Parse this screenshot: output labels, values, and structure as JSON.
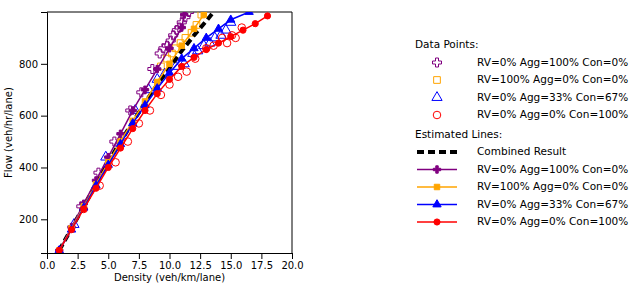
{
  "chart_data": {
    "type": "scatter",
    "x_label": "Density (veh/km/lane)",
    "y_label": "Flow (veh/hr/lane)",
    "xlim": [
      0,
      20
    ],
    "ylim": [
      70,
      1000
    ],
    "xticks": [
      {
        "value": 0,
        "label": "0.0"
      },
      {
        "value": 2.5,
        "label": "2.5"
      },
      {
        "value": 5,
        "label": "5.0"
      },
      {
        "value": 7.5,
        "label": "7.5"
      },
      {
        "value": 10,
        "label": "10.0"
      },
      {
        "value": 12.5,
        "label": "12.5"
      },
      {
        "value": 15,
        "label": "15.0"
      },
      {
        "value": 17.5,
        "label": "17.5"
      },
      {
        "value": 20,
        "label": "20.0"
      }
    ],
    "yticks": [
      200,
      400,
      600,
      800
    ],
    "grid": false,
    "legend": "right",
    "legend_headings": {
      "scatter": "Data Points:",
      "line": "Estimated Lines:"
    },
    "series": [
      {
        "name": "RV=0% Agg=100% Con=0%",
        "type": "scatter",
        "color": "purple",
        "marker": "plus",
        "line_style": "none",
        "x": [
          2.8,
          4.2,
          5.5,
          6.8,
          7.7,
          8.6,
          9.2,
          9.5,
          9.8,
          10.1,
          10.3,
          10.6,
          10.8,
          11.0,
          11.3,
          11.6
        ],
        "values": [
          250,
          380,
          500,
          620,
          690,
          780,
          840,
          860,
          870,
          890,
          910,
          930,
          940,
          960,
          980,
          1000
        ]
      },
      {
        "name": "RV=100% Agg=0% Con=0%",
        "type": "scatter",
        "color": "orange",
        "marker": "square",
        "line_style": "none",
        "x": [
          9.3,
          9.8,
          10.2,
          10.5,
          10.9,
          11.3,
          11.8,
          12.2,
          12.6
        ],
        "values": [
          790,
          820,
          840,
          860,
          880,
          900,
          920,
          950,
          990
        ]
      },
      {
        "name": "RV=0% Agg=33% Con=67%",
        "type": "scatter",
        "color": "blue",
        "marker": "triangle",
        "line_style": "none",
        "x": [
          2.2,
          4.8,
          7.2,
          8.3,
          9.0,
          9.6,
          10.5,
          11.2,
          11.9,
          12.3,
          12.8,
          13.3,
          13.7,
          14.2,
          14.6,
          15.0
        ],
        "values": [
          180,
          440,
          620,
          700,
          740,
          760,
          790,
          800,
          840,
          850,
          870,
          880,
          900,
          910,
          930,
          960
        ]
      },
      {
        "name": "RV=0% Agg=0% Con=100%",
        "type": "scatter",
        "color": "red",
        "marker": "circle",
        "line_style": "none",
        "x": [
          3.0,
          4.3,
          5.6,
          6.6,
          7.5,
          8.4,
          9.3,
          10.0,
          10.7,
          11.4,
          12.1,
          13.0,
          13.6,
          14.3,
          14.7,
          15.1,
          15.4,
          15.9
        ],
        "values": [
          240,
          330,
          420,
          500,
          570,
          620,
          680,
          720,
          750,
          770,
          820,
          860,
          870,
          900,
          880,
          910,
          900,
          940
        ]
      },
      {
        "name": "Combined Result",
        "type": "line",
        "color": "black",
        "marker": "none",
        "line_style": "dashed",
        "x": [
          1,
          2,
          3,
          4,
          5,
          6,
          7,
          8,
          9,
          10,
          11,
          12,
          13,
          13.6
        ],
        "values": [
          80,
          165,
          250,
          335,
          420,
          500,
          575,
          650,
          720,
          785,
          850,
          910,
          965,
          1000
        ]
      },
      {
        "name": "RV=0% Agg=100% Con=0%",
        "type": "line",
        "color": "purple",
        "marker": "plus",
        "line_style": "solid",
        "x": [
          1,
          2,
          3,
          4,
          5,
          6,
          7,
          8,
          9,
          10,
          11,
          11.2
        ],
        "values": [
          80,
          170,
          260,
          350,
          440,
          530,
          620,
          700,
          780,
          860,
          940,
          990
        ]
      },
      {
        "name": "RV=100% Agg=0% Con=0%",
        "type": "line",
        "color": "orange",
        "marker": "square",
        "line_style": "solid",
        "x": [
          1,
          2,
          3,
          4,
          5,
          6,
          7,
          8,
          9,
          10,
          11,
          12,
          12.8
        ],
        "values": [
          80,
          165,
          250,
          335,
          420,
          500,
          580,
          655,
          730,
          800,
          870,
          935,
          990
        ]
      },
      {
        "name": "RV=0% Agg=33% Con=67%",
        "type": "line",
        "color": "blue",
        "marker": "triangle",
        "line_style": "solid",
        "x": [
          1,
          2,
          3,
          4,
          5,
          6,
          7,
          8,
          9,
          10,
          11,
          12,
          13,
          14,
          15,
          16.5
        ],
        "values": [
          80,
          160,
          245,
          330,
          410,
          490,
          570,
          640,
          705,
          765,
          820,
          860,
          900,
          935,
          970,
          1000
        ]
      },
      {
        "name": "RV=0% Agg=0% Con=100%",
        "type": "line",
        "color": "red",
        "marker": "circle",
        "line_style": "solid",
        "x": [
          1,
          2,
          3,
          4,
          5,
          6,
          7,
          8,
          9,
          10,
          11,
          12,
          13,
          14,
          15,
          16,
          17,
          18
        ],
        "values": [
          80,
          160,
          240,
          320,
          400,
          475,
          550,
          620,
          685,
          740,
          790,
          825,
          855,
          880,
          905,
          930,
          955,
          985
        ]
      }
    ]
  }
}
